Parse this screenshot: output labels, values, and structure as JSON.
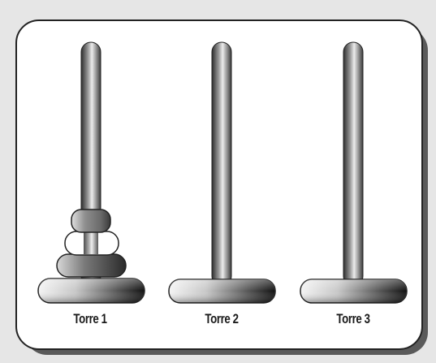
{
  "towers": [
    {
      "label": "Torre 1",
      "disk_count": 3
    },
    {
      "label": "Torre 2",
      "disk_count": 0
    },
    {
      "label": "Torre 3",
      "disk_count": 0
    }
  ],
  "colors": {
    "background": "#e6e6e6",
    "panel": "#ffffff",
    "panel_border": "#222222",
    "shadow": "#555555",
    "rod_dark": "#3a3a3a",
    "rod_light": "#e8e8e8"
  }
}
